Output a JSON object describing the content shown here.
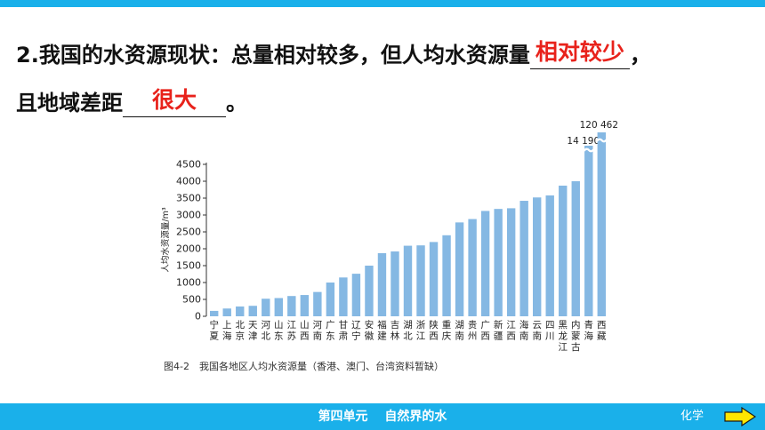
{
  "question": {
    "line1_text": "2.我国的水资源现状：总量相对较多，但人均水资源量",
    "answer1": "相对较少",
    "line1_tail": "，",
    "line2_text": "且地域差距",
    "answer2": "很大",
    "line2_tail": "。"
  },
  "figure_caption": "图4-2　我国各地区人均水资源量（香港、澳门、台湾资料暂缺）",
  "footer": {
    "title": "第四单元　 自然界的水",
    "subject": "化学"
  },
  "colors": {
    "bar": "#85b8e3",
    "accent": "#1ab0ea",
    "answer": "#e8221b"
  },
  "icons": {
    "next": "arrow-right-icon"
  },
  "chart_data": {
    "type": "bar",
    "categories": [
      "宁夏",
      "上海",
      "北京",
      "天津",
      "河北",
      "山东",
      "江苏",
      "山西",
      "河南",
      "广东",
      "甘肃",
      "辽宁",
      "安徽",
      "福建",
      "吉林",
      "湖北",
      "浙江",
      "陕西",
      "重庆",
      "湖南",
      "贵州",
      "广西",
      "新疆",
      "江西",
      "海南",
      "云南",
      "四川",
      "黑龙江",
      "内蒙古",
      "青海",
      "西藏"
    ],
    "values": [
      160,
      230,
      290,
      310,
      520,
      540,
      600,
      630,
      720,
      1000,
      1150,
      1260,
      1500,
      1870,
      1920,
      2090,
      2100,
      2200,
      2400,
      2780,
      2880,
      3120,
      3180,
      3200,
      3420,
      3520,
      3580,
      3870,
      4000,
      14190,
      120462
    ],
    "value_labels": [
      "",
      "",
      "",
      "",
      "",
      "",
      "",
      "",
      "",
      "",
      "",
      "",
      "",
      "",
      "",
      "",
      "",
      "",
      "",
      "",
      "",
      "",
      "",
      "",
      "",
      "",
      "",
      "",
      "",
      "14 190",
      "120 462"
    ],
    "ylabel": "人均水资源量/m³",
    "xlabel": "",
    "title": "",
    "ylim": [
      0,
      4500
    ],
    "yticks": [
      "0",
      "500",
      "1000",
      "1500",
      "2000",
      "2500",
      "3000",
      "3500",
      "4000",
      "4500"
    ],
    "grid": false,
    "axis_break": true
  }
}
